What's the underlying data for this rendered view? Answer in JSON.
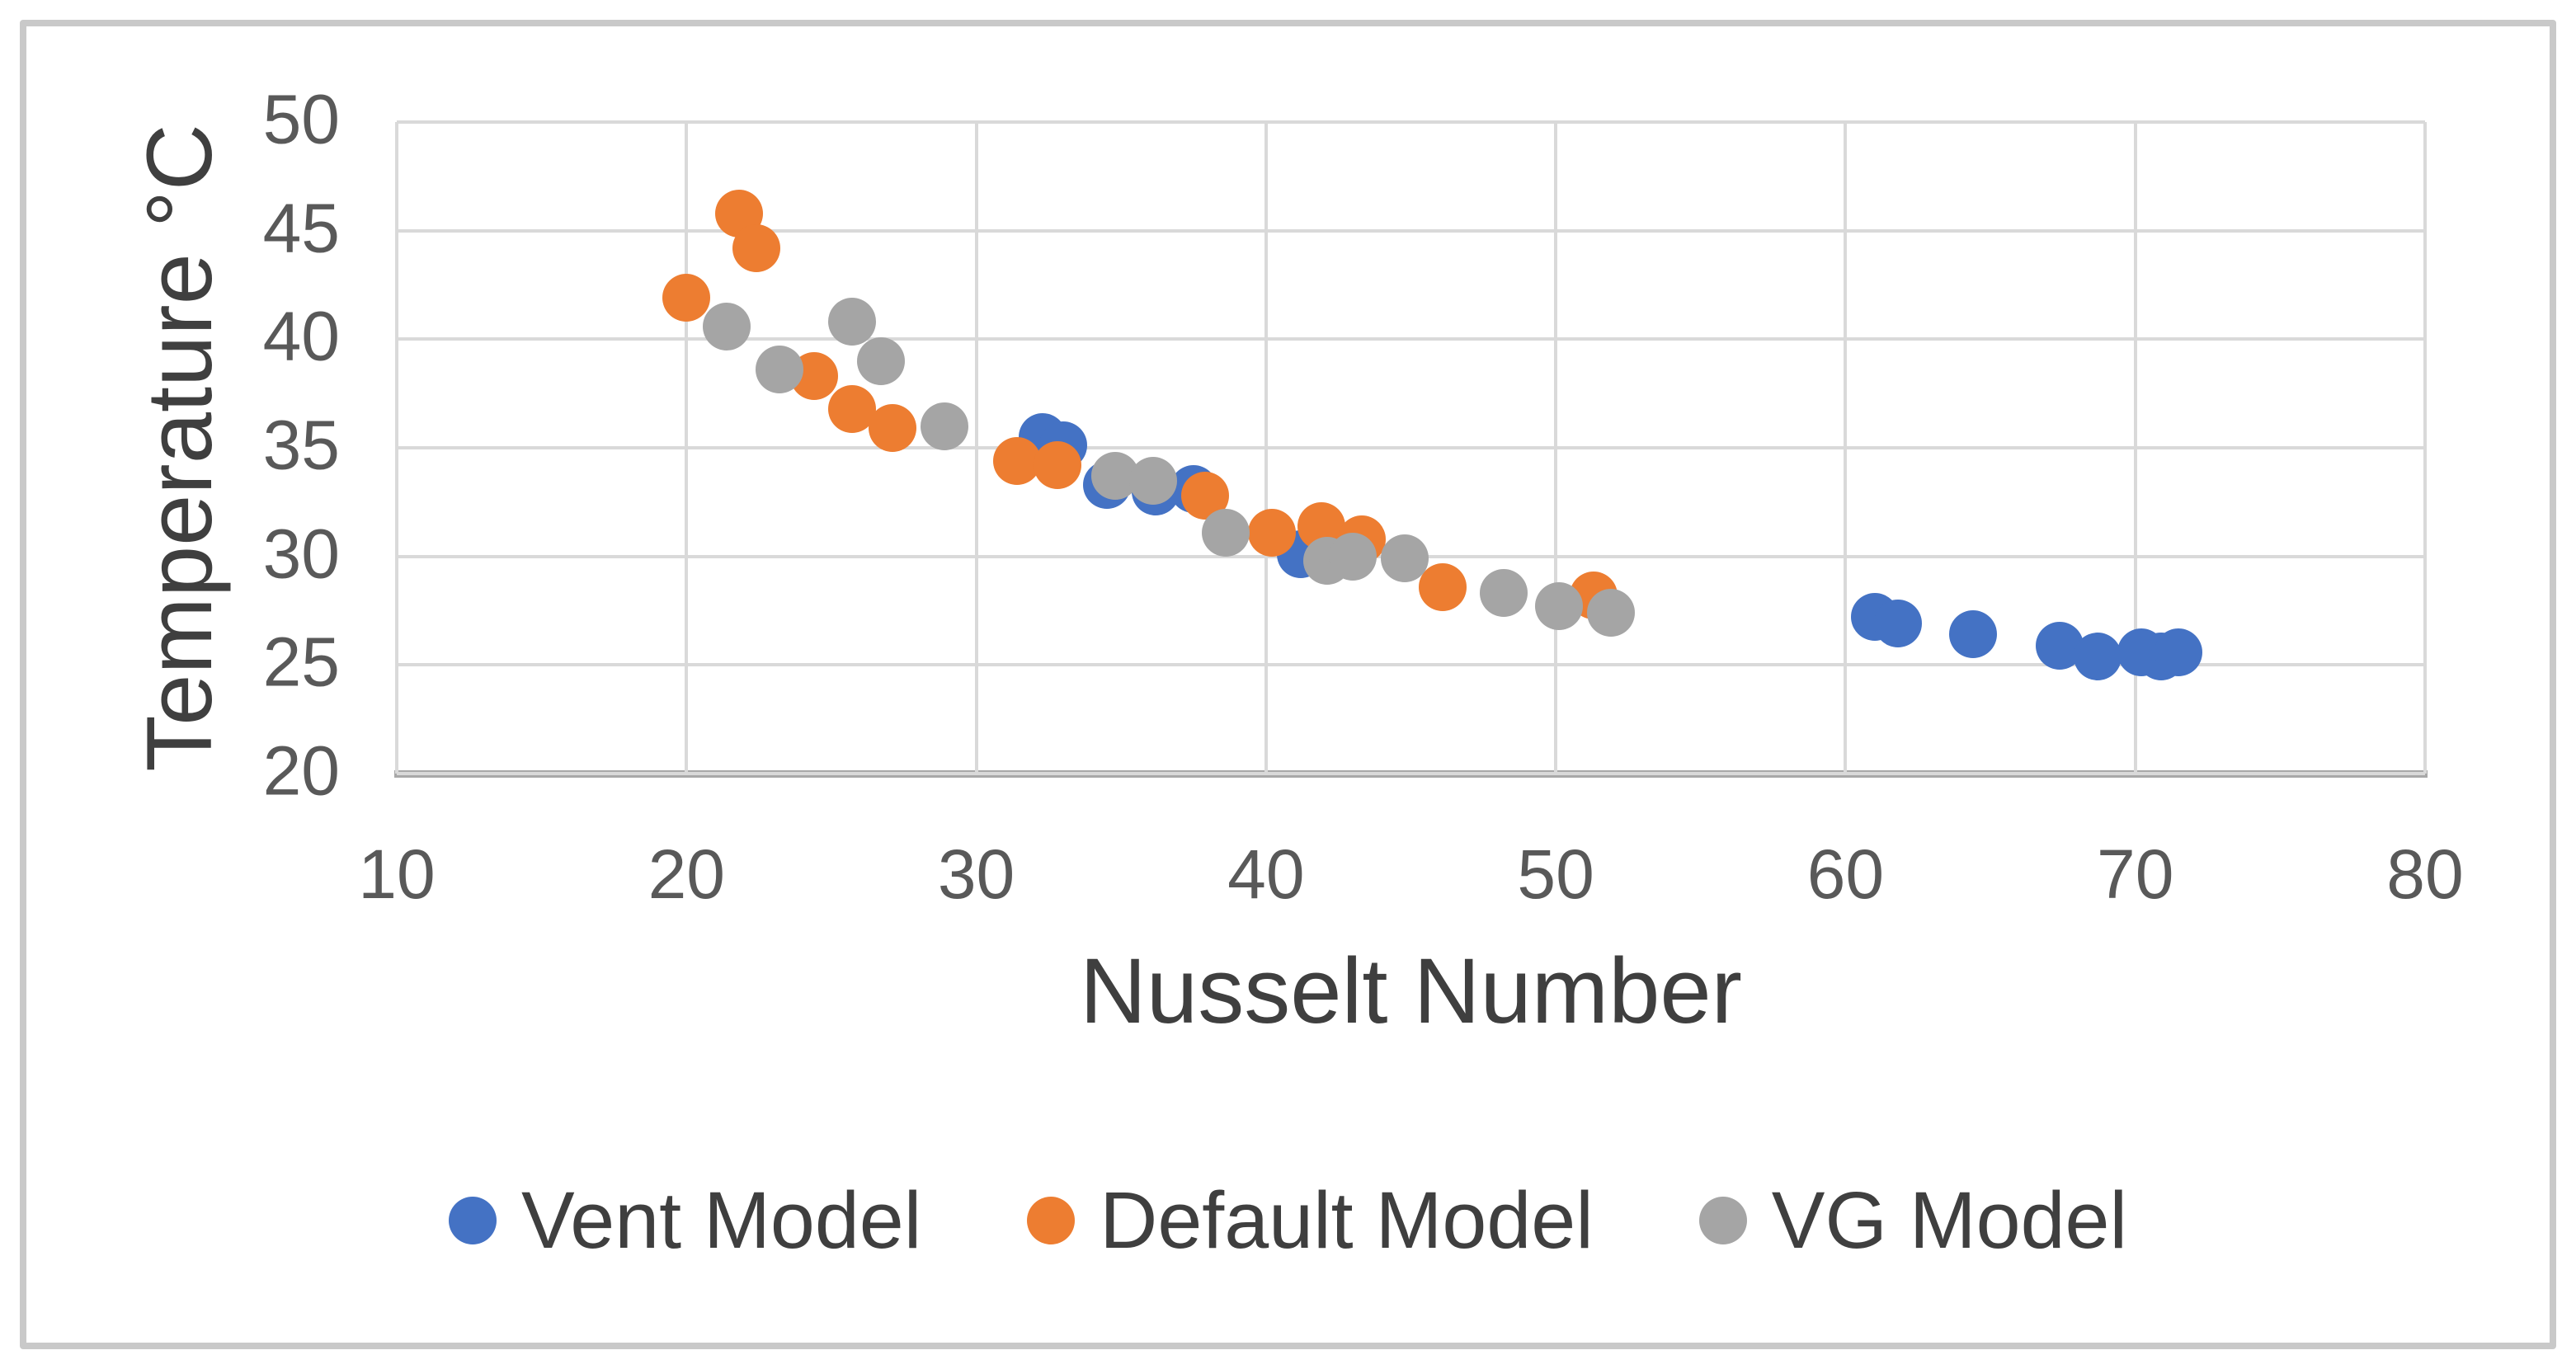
{
  "chart_data": {
    "type": "scatter",
    "title": "",
    "xlabel": "Nusselt Number",
    "ylabel": "Temperature °C",
    "xlim": [
      10,
      80
    ],
    "ylim": [
      20,
      50
    ],
    "x_ticks": [
      10,
      20,
      30,
      40,
      50,
      60,
      70,
      80
    ],
    "y_ticks": [
      50,
      45,
      40,
      35,
      30,
      25,
      20
    ],
    "grid": true,
    "legend_position": "bottom",
    "gridline_color": "#d9d9d9",
    "axis_line_color": "#a8a8a8",
    "tick_label_color": "#595959",
    "title_color": "#3f3f3f",
    "series": [
      {
        "name": "Vent Model",
        "color": "#4472C4",
        "points": [
          [
            32.3,
            35.5
          ],
          [
            33.0,
            35.1
          ],
          [
            34.5,
            33.3
          ],
          [
            36.2,
            33.0
          ],
          [
            37.5,
            33.1
          ],
          [
            41.2,
            30.1
          ],
          [
            61.0,
            27.2
          ],
          [
            61.8,
            26.9
          ],
          [
            64.4,
            26.4
          ],
          [
            67.4,
            25.9
          ],
          [
            68.7,
            25.4
          ],
          [
            70.2,
            25.6
          ],
          [
            70.9,
            25.4
          ],
          [
            71.5,
            25.6
          ]
        ]
      },
      {
        "name": "Default Model",
        "color": "#ED7D31",
        "points": [
          [
            20.0,
            41.9
          ],
          [
            21.8,
            45.8
          ],
          [
            22.4,
            44.2
          ],
          [
            24.4,
            38.3
          ],
          [
            25.7,
            36.8
          ],
          [
            27.1,
            35.9
          ],
          [
            31.4,
            34.4
          ],
          [
            32.8,
            34.2
          ],
          [
            37.9,
            32.8
          ],
          [
            40.2,
            31.1
          ],
          [
            41.9,
            31.4
          ],
          [
            43.3,
            30.8
          ],
          [
            46.1,
            28.6
          ],
          [
            51.3,
            28.2
          ]
        ]
      },
      {
        "name": "VG Model",
        "color": "#A5A5A5",
        "points": [
          [
            21.4,
            40.6
          ],
          [
            23.2,
            38.6
          ],
          [
            25.7,
            40.8
          ],
          [
            26.7,
            39.0
          ],
          [
            28.9,
            36.0
          ],
          [
            34.8,
            33.7
          ],
          [
            36.1,
            33.5
          ],
          [
            38.6,
            31.1
          ],
          [
            42.1,
            29.8
          ],
          [
            43.0,
            30.0
          ],
          [
            44.8,
            29.9
          ],
          [
            48.2,
            28.3
          ],
          [
            50.1,
            27.7
          ],
          [
            51.9,
            27.4
          ]
        ]
      }
    ]
  }
}
